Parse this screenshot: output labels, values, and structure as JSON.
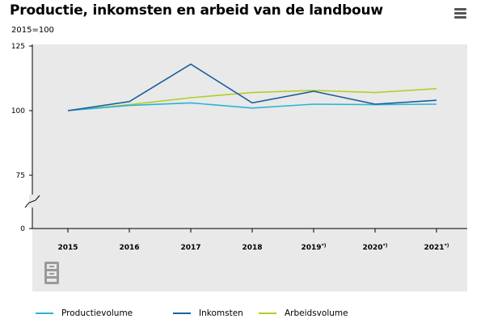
{
  "header": {
    "title": "Productie, inkomsten en arbeid van de landbouw",
    "subtitle": "2015=100",
    "menu_icon": "hamburger-menu-icon"
  },
  "logo": {
    "name": "cbs-logo",
    "text": "cbs"
  },
  "colors": {
    "productievolume": "#2ab4d6",
    "inkomsten": "#1a5fa0",
    "arbeidsvolume": "#b2cf25",
    "plot_background": "#e9e9e9"
  },
  "chart_data": {
    "type": "line",
    "title": "Productie, inkomsten en arbeid van de landbouw",
    "subtitle": "2015=100",
    "categories": [
      "2015",
      "2016",
      "2017",
      "2018",
      "2019*)",
      "2020*)",
      "2021*)"
    ],
    "y_ticks": [
      "125",
      "100",
      "75",
      "0"
    ],
    "axis_break": true,
    "ylim": [
      0,
      125
    ],
    "grid": false,
    "legend_position": "bottom",
    "series": [
      {
        "name": "Productievolume",
        "color": "#2ab4d6",
        "values": [
          100,
          102,
          103,
          101,
          102.5,
          102.3,
          102.5
        ]
      },
      {
        "name": "Inkomsten",
        "color": "#1a5fa0",
        "values": [
          100,
          103.5,
          118,
          103,
          107.5,
          102.5,
          104
        ]
      },
      {
        "name": "Arbeidsvolume",
        "color": "#b2cf25",
        "values": [
          100,
          102.3,
          105,
          107,
          107.8,
          107,
          108.5
        ]
      }
    ]
  }
}
